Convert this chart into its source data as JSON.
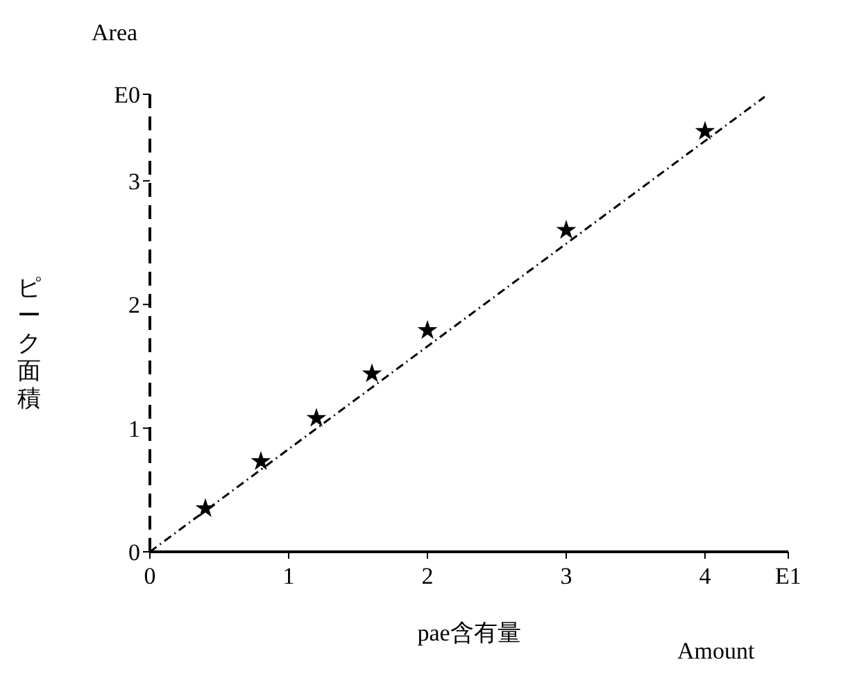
{
  "chart_data": {
    "type": "scatter",
    "xlabel": "pae含有量",
    "ylabel": "ピーク面積",
    "annotations": [
      "Area",
      "Amount"
    ],
    "series": [
      {
        "color": "#000000",
        "x": [
          0.4,
          0.8,
          1.2,
          1.6,
          2,
          3,
          4
        ],
        "values": [
          0.35,
          0.73,
          1.08,
          1.44,
          1.79,
          2.6,
          3.4
        ]
      },
      {
        "type": "line",
        "color": "#000000",
        "x": [
          0,
          4.43
        ],
        "values": [
          0,
          3.68
        ],
        "marker": "none",
        "line_style": "dashed"
      }
    ],
    "marker": "star",
    "xlim": [
      0,
      4.6
    ],
    "xticks": [
      0,
      1,
      2,
      3,
      4,
      {
        "value": 4.6,
        "label": "E1"
      }
    ],
    "ylim": [
      0,
      3.7
    ],
    "yticks": [
      0,
      1,
      2,
      3,
      {
        "value": 3.7,
        "label": "E0"
      }
    ],
    "grid": false
  }
}
